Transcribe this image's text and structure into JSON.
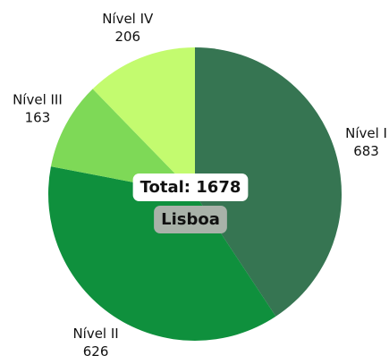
{
  "chart_data": {
    "type": "pie",
    "categories": [
      "Nível I",
      "Nível II",
      "Nível III",
      "Nível IV"
    ],
    "values": [
      683,
      626,
      163,
      206
    ],
    "colors": [
      "#367552",
      "#0f903d",
      "#7ed957",
      "#c3fb6f"
    ],
    "center_label": "Total: 1678",
    "center_sublabel": "Lisboa"
  }
}
